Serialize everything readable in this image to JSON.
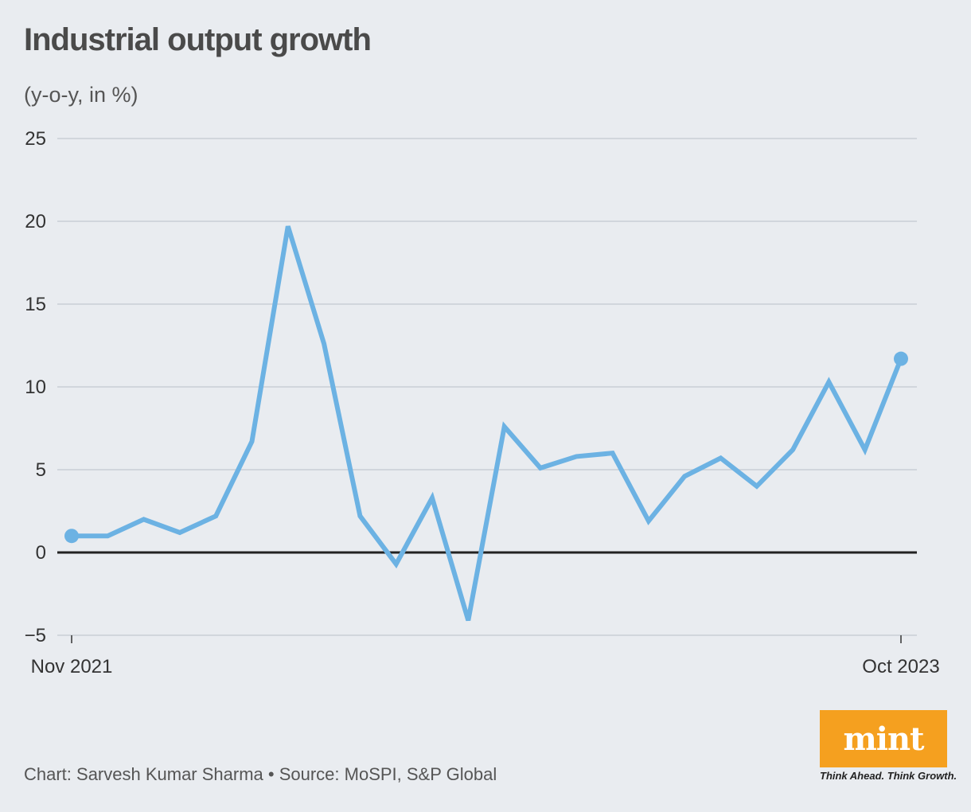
{
  "header": {
    "title": "Industrial output growth",
    "subtitle": "(y-o-y, in %)"
  },
  "footer": {
    "credit": "Chart: Sarvesh Kumar Sharma • Source: MoSPI, S&P Global"
  },
  "logo": {
    "word": "mint",
    "tagline": "Think Ahead. Think Growth.",
    "color": "#f5a01f"
  },
  "chart_data": {
    "type": "line",
    "title": "Industrial output growth",
    "subtitle": "(y-o-y, in %)",
    "x": [
      "Nov 2021",
      "Dec 2021",
      "Jan 2022",
      "Feb 2022",
      "Mar 2022",
      "Apr 2022",
      "May 2022",
      "Jun 2022",
      "Jul 2022",
      "Aug 2022",
      "Sep 2022",
      "Oct 2022",
      "Nov 2022",
      "Dec 2022",
      "Jan 2023",
      "Feb 2023",
      "Mar 2023",
      "Apr 2023",
      "May 2023",
      "Jun 2023",
      "Jul 2023",
      "Aug 2023",
      "Sep 2023",
      "Oct 2023"
    ],
    "x_tick_labels": [
      "Nov 2021",
      "Oct 2023"
    ],
    "series": [
      {
        "values": [
          1.0,
          1.0,
          2.0,
          1.2,
          2.2,
          6.7,
          19.7,
          12.6,
          2.2,
          -0.7,
          3.3,
          -4.1,
          7.6,
          5.1,
          5.8,
          6.0,
          1.9,
          4.6,
          5.7,
          4.0,
          6.2,
          10.3,
          6.2,
          11.7
        ],
        "color": "#6cb2e3"
      }
    ],
    "xlabel": "",
    "ylabel": "",
    "ylim": [
      -5,
      25
    ],
    "yticks": [
      -5,
      0,
      5,
      10,
      15,
      20,
      25
    ],
    "ytick_labels": [
      "−5",
      "0",
      "5",
      "10",
      "15",
      "20",
      "25"
    ],
    "grid": true,
    "zero_line_color": "#222222",
    "grid_color": "#c9ced6"
  }
}
